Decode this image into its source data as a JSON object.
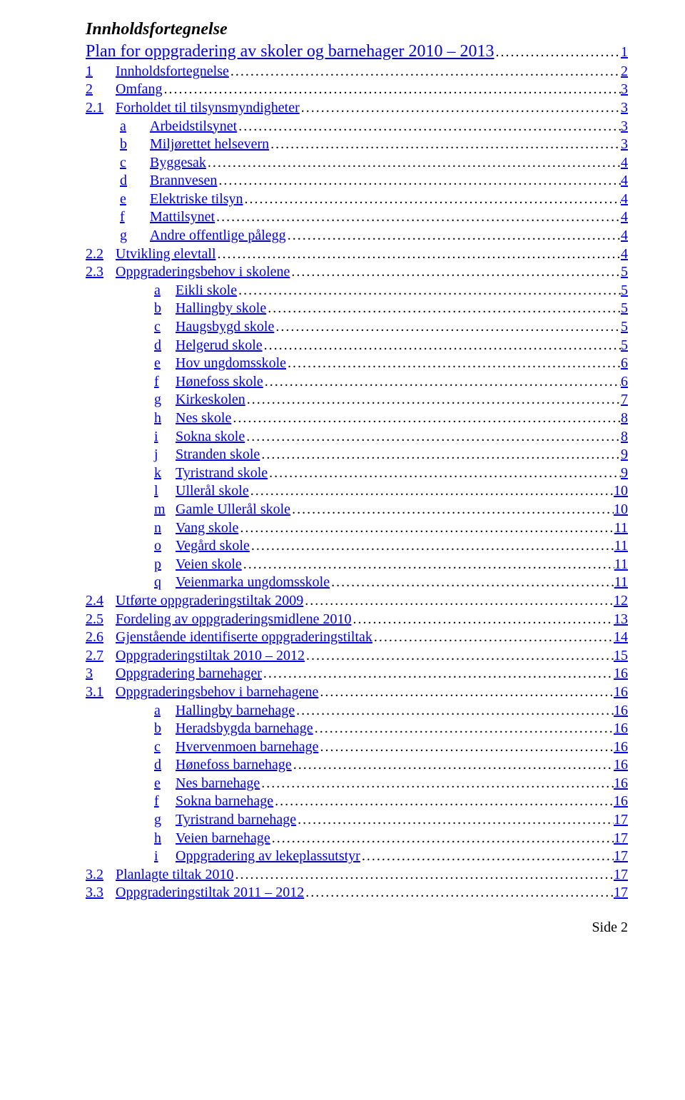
{
  "title": "Innholdsfortegnelse",
  "main_link": "Plan for oppgradering av skoler og barnehager 2010 – 2013",
  "main_link_page": "1",
  "footer": "Side 2",
  "link_color": "#0000ee",
  "text_color": "#000000",
  "background_color": "#ffffff",
  "font_family": "Times New Roman",
  "entries": [
    {
      "level": 0,
      "marker": "1",
      "label": "Innholdsfortegnelse",
      "page": "2"
    },
    {
      "level": 0,
      "marker": "2",
      "label": "Omfang",
      "page": "3"
    },
    {
      "level": 0,
      "marker": "2.1",
      "label": "Forholdet til tilsynsmyndigheter",
      "page": "3"
    },
    {
      "level": 1,
      "marker": "a",
      "label": "Arbeidstilsynet",
      "page": "3"
    },
    {
      "level": 1,
      "marker": "b",
      "label": "Miljørettet helsevern",
      "page": "3"
    },
    {
      "level": 1,
      "marker": "c",
      "label": "Byggesak",
      "page": "4"
    },
    {
      "level": 1,
      "marker": "d",
      "label": "Brannvesen",
      "page": "4"
    },
    {
      "level": 1,
      "marker": "e",
      "label": "Elektriske tilsyn",
      "page": "4"
    },
    {
      "level": 1,
      "marker": "f",
      "label": "Mattilsynet",
      "page": "4"
    },
    {
      "level": 1,
      "marker": "g",
      "label": "Andre offentlige pålegg",
      "page": "4"
    },
    {
      "level": 0,
      "marker": "2.2",
      "label": "Utvikling elevtall",
      "page": "4"
    },
    {
      "level": 0,
      "marker": "2.3",
      "label": "Oppgraderingsbehov i skolene",
      "page": "5"
    },
    {
      "level": 2,
      "marker": "a",
      "label": "Eikli skole",
      "page": "5"
    },
    {
      "level": 2,
      "marker": "b",
      "label": "Hallingby skole",
      "page": "5"
    },
    {
      "level": 2,
      "marker": "c",
      "label": "Haugsbygd skole",
      "page": "5"
    },
    {
      "level": 2,
      "marker": "d",
      "label": "Helgerud skole",
      "page": "5"
    },
    {
      "level": 2,
      "marker": "e",
      "label": "Hov ungdomsskole",
      "page": "6"
    },
    {
      "level": 2,
      "marker": "f",
      "label": "Hønefoss skole",
      "page": "6"
    },
    {
      "level": 2,
      "marker": "g",
      "label": "Kirkeskolen",
      "page": "7"
    },
    {
      "level": 2,
      "marker": "h",
      "label": "Nes skole",
      "page": "8"
    },
    {
      "level": 2,
      "marker": "i",
      "label": "Sokna skole",
      "page": "8"
    },
    {
      "level": 2,
      "marker": "j",
      "label": "Stranden skole",
      "page": "9"
    },
    {
      "level": 2,
      "marker": "k",
      "label": "Tyristrand skole",
      "page": "9"
    },
    {
      "level": 2,
      "marker": "l",
      "label": "Ullerål skole",
      "page": "10"
    },
    {
      "level": 2,
      "marker": "m",
      "label": "Gamle Ullerål skole",
      "page": "10"
    },
    {
      "level": 2,
      "marker": "n",
      "label": "Vang skole",
      "page": "11"
    },
    {
      "level": 2,
      "marker": "o",
      "label": "Vegård skole",
      "page": "11"
    },
    {
      "level": 2,
      "marker": "p",
      "label": "Veien skole",
      "page": "11"
    },
    {
      "level": 2,
      "marker": "q",
      "label": "Veienmarka ungdomsskole",
      "page": "11"
    },
    {
      "level": 0,
      "marker": "2.4",
      "label": "Utførte oppgraderingstiltak 2009",
      "page": "12"
    },
    {
      "level": 0,
      "marker": "2.5",
      "label": "Fordeling av oppgraderingsmidlene 2010",
      "page": "13"
    },
    {
      "level": 0,
      "marker": "2.6",
      "label": "Gjenstående identifiserte oppgraderingstiltak",
      "page": "14"
    },
    {
      "level": 0,
      "marker": "2.7",
      "label": "Oppgraderingstiltak 2010 – 2012",
      "page": "15"
    },
    {
      "level": 0,
      "marker": "3",
      "label": "Oppgradering barnehager",
      "page": "16"
    },
    {
      "level": 0,
      "marker": "3.1",
      "label": "Oppgraderingsbehov i barnehagene",
      "page": "16"
    },
    {
      "level": 2,
      "marker": "a",
      "label": "Hallingby barnehage",
      "page": "16"
    },
    {
      "level": 2,
      "marker": "b",
      "label": "Heradsbygda barnehage",
      "page": "16"
    },
    {
      "level": 2,
      "marker": "c",
      "label": "Hvervenmoen barnehage",
      "page": "16"
    },
    {
      "level": 2,
      "marker": "d",
      "label": "Hønefoss barnehage",
      "page": "16"
    },
    {
      "level": 2,
      "marker": "e",
      "label": "Nes barnehage",
      "page": "16"
    },
    {
      "level": 2,
      "marker": "f",
      "label": "Sokna barnehage",
      "page": "16"
    },
    {
      "level": 2,
      "marker": "g",
      "label": "Tyristrand barnehage",
      "page": "17"
    },
    {
      "level": 2,
      "marker": "h",
      "label": "Veien barnehage",
      "page": "17"
    },
    {
      "level": 2,
      "marker": "i",
      "label": "Oppgradering av lekeplassutstyr",
      "page": "17"
    },
    {
      "level": 0,
      "marker": "3.2",
      "label": "Planlagte tiltak 2010",
      "page": "17"
    },
    {
      "level": 0,
      "marker": "3.3",
      "label": "Oppgraderingstiltak 2011 – 2012",
      "page": "17"
    }
  ]
}
